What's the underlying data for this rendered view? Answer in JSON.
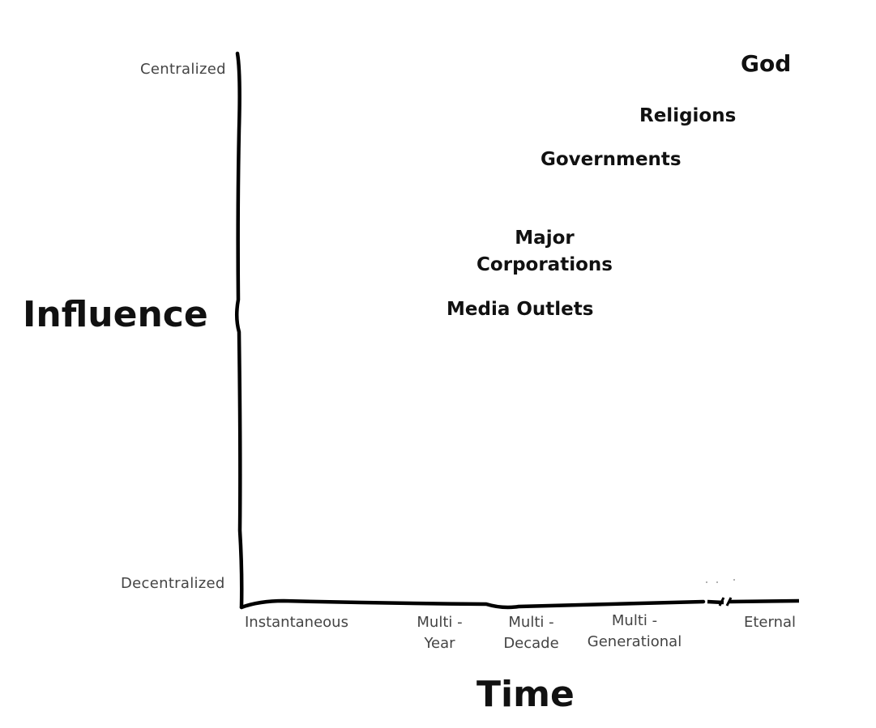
{
  "y_axis": {
    "title": "Influence",
    "top_label": "Centralized",
    "bottom_label": "Decentralized"
  },
  "x_axis": {
    "title": "Time",
    "ticks": [
      {
        "line1": "Instantaneous",
        "line2": ""
      },
      {
        "line1": "Multi -",
        "line2": "Year"
      },
      {
        "line1": "Multi -",
        "line2": "Decade"
      },
      {
        "line1": "Multi -",
        "line2": "Generational"
      },
      {
        "line1": "Eternal",
        "line2": ""
      }
    ]
  },
  "items": [
    {
      "line1": "God",
      "line2": ""
    },
    {
      "line1": "Religions",
      "line2": ""
    },
    {
      "line1": "Governments",
      "line2": ""
    },
    {
      "line1": "Major",
      "line2": "Corporations"
    },
    {
      "line1": "Media Outlets",
      "line2": ""
    }
  ]
}
